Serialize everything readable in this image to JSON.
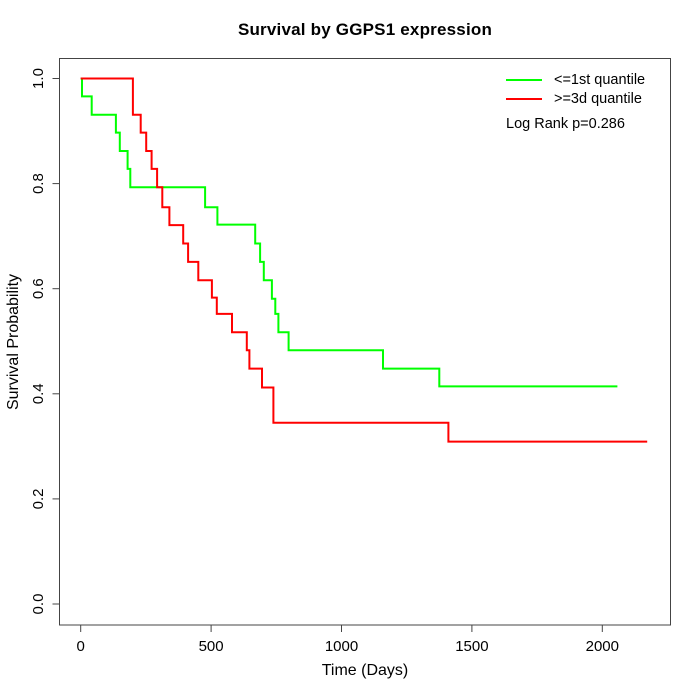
{
  "title": "Survival by GGPS1 expression",
  "x_axis": {
    "label": "Time (Days)",
    "tick_labels": [
      "0",
      "500",
      "1000",
      "1500",
      "2000"
    ],
    "tick_values": [
      0,
      500,
      1000,
      1500,
      2000
    ]
  },
  "y_axis": {
    "label": "Survival Probability",
    "tick_labels": [
      "0.0",
      "0.2",
      "0.4",
      "0.6",
      "0.8",
      "1.0"
    ],
    "tick_values": [
      0,
      0.2,
      0.4,
      0.6,
      0.8,
      1.0
    ]
  },
  "legend": {
    "items": [
      {
        "label": "<=1st quantile",
        "color": "#00FF00"
      },
      {
        "label": ">=3d quantile",
        "color": "#FF0000"
      }
    ],
    "note": "Log Rank p=0.286"
  },
  "chart_data": {
    "type": "line",
    "subtype": "kaplan-meier-step",
    "title": "Survival by GGPS1 expression",
    "xlabel": "Time (Days)",
    "ylabel": "Survival Probability",
    "xlim": [
      0,
      2200
    ],
    "ylim": [
      0.0,
      1.0
    ],
    "grid": false,
    "legend_position": "top-right",
    "annotations": [
      "Log Rank p=0.286"
    ],
    "x_ticks": [
      0,
      500,
      1000,
      1500,
      2000
    ],
    "y_ticks": [
      0.0,
      0.2,
      0.4,
      0.6,
      0.8,
      1.0
    ],
    "series": [
      {
        "name": "<=1st quantile",
        "color": "#00FF00",
        "points": [
          [
            0,
            1.0
          ],
          [
            5,
            0.966
          ],
          [
            42,
            0.931
          ],
          [
            135,
            0.897
          ],
          [
            150,
            0.862
          ],
          [
            180,
            0.828
          ],
          [
            190,
            0.793
          ],
          [
            477,
            0.755
          ],
          [
            524,
            0.722
          ],
          [
            669,
            0.686
          ],
          [
            688,
            0.651
          ],
          [
            702,
            0.616
          ],
          [
            733,
            0.581
          ],
          [
            746,
            0.552
          ],
          [
            758,
            0.517
          ],
          [
            797,
            0.483
          ],
          [
            1159,
            0.448
          ],
          [
            1375,
            0.414
          ],
          [
            2058,
            0.414
          ]
        ]
      },
      {
        "name": ">=3d quantile",
        "color": "#FF0000",
        "points": [
          [
            0,
            1.0
          ],
          [
            200,
            0.931
          ],
          [
            230,
            0.897
          ],
          [
            251,
            0.862
          ],
          [
            272,
            0.828
          ],
          [
            293,
            0.793
          ],
          [
            313,
            0.755
          ],
          [
            340,
            0.721
          ],
          [
            393,
            0.686
          ],
          [
            412,
            0.651
          ],
          [
            451,
            0.616
          ],
          [
            503,
            0.583
          ],
          [
            522,
            0.552
          ],
          [
            580,
            0.517
          ],
          [
            637,
            0.483
          ],
          [
            647,
            0.448
          ],
          [
            695,
            0.412
          ],
          [
            739,
            0.345
          ],
          [
            1410,
            0.309
          ],
          [
            2172,
            0.309
          ]
        ]
      }
    ]
  }
}
